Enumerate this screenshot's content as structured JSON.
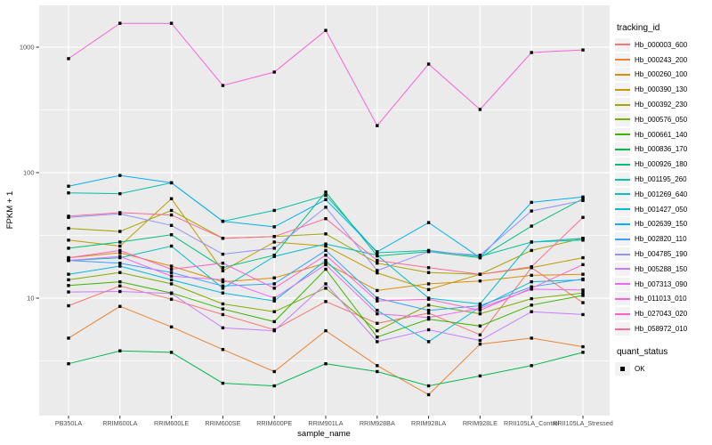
{
  "chart_data": {
    "type": "line",
    "title": "",
    "xlabel": "sample_name",
    "ylabel": "FPKM + 1",
    "y_scale": "log10",
    "y_tick_labels": [
      "10",
      "100",
      "1000"
    ],
    "y_ticks": [
      10,
      100,
      1000
    ],
    "ylim": [
      1.16,
      2150
    ],
    "grid": "on",
    "legend_position": "right",
    "legend_title": "tracking_id",
    "quant_legend_title": "quant_status",
    "quant_legend_items": [
      "OK"
    ],
    "marker_color": "#000000",
    "panel_bg": "#EBEBEB",
    "grid_color": "#FFFFFF",
    "axis_text_color": "#4D4D4D",
    "categories": [
      "PB350LA",
      "RRIM600LA",
      "RRIM600LE",
      "RRIM600SE",
      "RRIM600PE",
      "RRIM901LA",
      "RRIM928BA",
      "RRIM928LA",
      "RRIM928LE",
      "RRII105LA_Control",
      "RRII105LA_Stressed"
    ],
    "series": [
      {
        "name": "Hb_000003_600",
        "color": "#F8766D",
        "values": [
          8.7,
          12.5,
          9.8,
          7.4,
          5.6,
          9.4,
          6.3,
          7.6,
          5.1,
          17.5,
          9.2
        ]
      },
      {
        "name": "Hb_000243_200",
        "color": "#EA8331",
        "values": [
          4.8,
          8.6,
          5.9,
          3.9,
          2.6,
          5.5,
          2.9,
          1.7,
          4.3,
          4.8,
          4.1
        ]
      },
      {
        "name": "Hb_000260_100",
        "color": "#D89000",
        "values": [
          21,
          23,
          18,
          13.5,
          14.5,
          19,
          11.5,
          13,
          13.7,
          15.2,
          15.5
        ]
      },
      {
        "name": "Hb_000390_130",
        "color": "#C09B00",
        "values": [
          29,
          26,
          62,
          16.5,
          28,
          26,
          15.9,
          11.7,
          15.5,
          17.5,
          21
        ]
      },
      {
        "name": "Hb_000392_230",
        "color": "#A3A500",
        "values": [
          36,
          34,
          50,
          30,
          31,
          32.5,
          19,
          16,
          15.5,
          24,
          30
        ]
      },
      {
        "name": "Hb_000576_050",
        "color": "#7CAE00",
        "values": [
          14,
          16,
          13,
          9,
          7.8,
          12,
          5.5,
          8.8,
          7.5,
          9.9,
          11
        ]
      },
      {
        "name": "Hb_000661_140",
        "color": "#39B600",
        "values": [
          12.6,
          13.5,
          11,
          8.2,
          6.5,
          17,
          4.9,
          6.8,
          6.0,
          8.8,
          10.5
        ]
      },
      {
        "name": "Hb_000836_170",
        "color": "#00BB4E",
        "values": [
          3.0,
          3.8,
          3.7,
          2.1,
          2.0,
          3.0,
          2.6,
          2.0,
          2.4,
          2.9,
          3.7
        ]
      },
      {
        "name": "Hb_000926_180",
        "color": "#00BF7D",
        "values": [
          25,
          28,
          32,
          17.5,
          22,
          70,
          21.7,
          23.5,
          21,
          37.5,
          62
        ]
      },
      {
        "name": "Hb_001195_260",
        "color": "#00C1A3",
        "values": [
          69,
          68,
          83,
          41,
          50,
          66,
          23,
          24,
          21.5,
          28,
          30
        ]
      },
      {
        "name": "Hb_001269_640",
        "color": "#00BFC4",
        "values": [
          20,
          21,
          26,
          12,
          21.5,
          27,
          22,
          10,
          9,
          28,
          29
        ]
      },
      {
        "name": "Hb_001427_050",
        "color": "#00BAE0",
        "values": [
          15.5,
          18,
          14,
          11,
          9.5,
          20,
          8,
          4.5,
          8.5,
          13.5,
          14
        ]
      },
      {
        "name": "Hb_002639_150",
        "color": "#00B0F6",
        "values": [
          78,
          95,
          83,
          41,
          37,
          61,
          23.4,
          40,
          21,
          58,
          64
        ]
      },
      {
        "name": "Hb_002820_110",
        "color": "#35A2FF",
        "values": [
          20,
          19,
          16,
          12.5,
          13,
          24,
          10,
          8,
          8.7,
          12.3,
          14.2
        ]
      },
      {
        "name": "Hb_004785_190",
        "color": "#9590FF",
        "values": [
          44,
          47,
          38,
          22.4,
          25,
          53,
          16.6,
          23.5,
          22,
          49.5,
          60
        ]
      },
      {
        "name": "Hb_005288_150",
        "color": "#C77CFF",
        "values": [
          11.2,
          11.3,
          10.9,
          5.8,
          5.5,
          13,
          4.5,
          5.6,
          4.6,
          7.8,
          7.4
        ]
      },
      {
        "name": "Hb_007313_090",
        "color": "#E76BF3",
        "values": [
          20,
          21.5,
          15,
          14,
          10,
          18.5,
          7.5,
          7.0,
          8.3,
          11.8,
          11.6
        ]
      },
      {
        "name": "Hb_011013_010",
        "color": "#FA62DB",
        "values": [
          810,
          1550,
          1550,
          495,
          633,
          1360,
          237,
          733,
          319,
          906,
          950
        ]
      },
      {
        "name": "Hb_027043_020",
        "color": "#FF61CC",
        "values": [
          21,
          24,
          17,
          19,
          12,
          22,
          9.5,
          9.8,
          8.0,
          12,
          18.5
        ]
      },
      {
        "name": "Hb_058972_010",
        "color": "#FF6A98",
        "values": [
          45,
          48,
          46,
          30,
          31,
          43,
          20,
          17.5,
          15.5,
          17.8,
          44
        ]
      }
    ]
  }
}
